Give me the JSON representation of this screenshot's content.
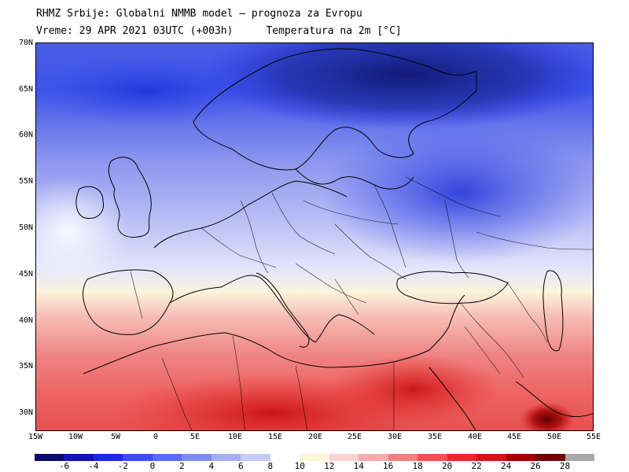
{
  "header": {
    "title": "RHMZ Srbije: Globalni NMMB model — prognoza za Evropu",
    "valid_time": "Vreme: 29 APR 2021 03UTC (+003h)",
    "field": "Temperatura na 2m [°C]"
  },
  "map": {
    "lat_ticks": [
      "70N",
      "65N",
      "60N",
      "55N",
      "50N",
      "45N",
      "40N",
      "35N",
      "30N"
    ],
    "lon_ticks": [
      "15W",
      "10W",
      "5W",
      "0",
      "5E",
      "10E",
      "15E",
      "20E",
      "25E",
      "30E",
      "35E",
      "40E",
      "45E",
      "50E",
      "55E"
    ],
    "lat_range": [
      28,
      70
    ],
    "lon_range": [
      -15,
      55
    ]
  },
  "colorbar": {
    "labels": [
      "-6",
      "-4",
      "-2",
      "0",
      "2",
      "4",
      "6",
      "8",
      "10",
      "12",
      "14",
      "16",
      "18",
      "20",
      "22",
      "24",
      "26",
      "28"
    ],
    "colors": [
      "#0a0a6e",
      "#1414b4",
      "#1e28e6",
      "#3c4ef0",
      "#5a6cf0",
      "#7f8cf5",
      "#a5adf8",
      "#c6cbfa",
      "#ffffff",
      "#fcf7d6",
      "#fcd2d2",
      "#f9aaaa",
      "#f57f7f",
      "#f05050",
      "#e82828",
      "#d21414",
      "#a00000",
      "#730000",
      "#a8a8a8"
    ]
  }
}
